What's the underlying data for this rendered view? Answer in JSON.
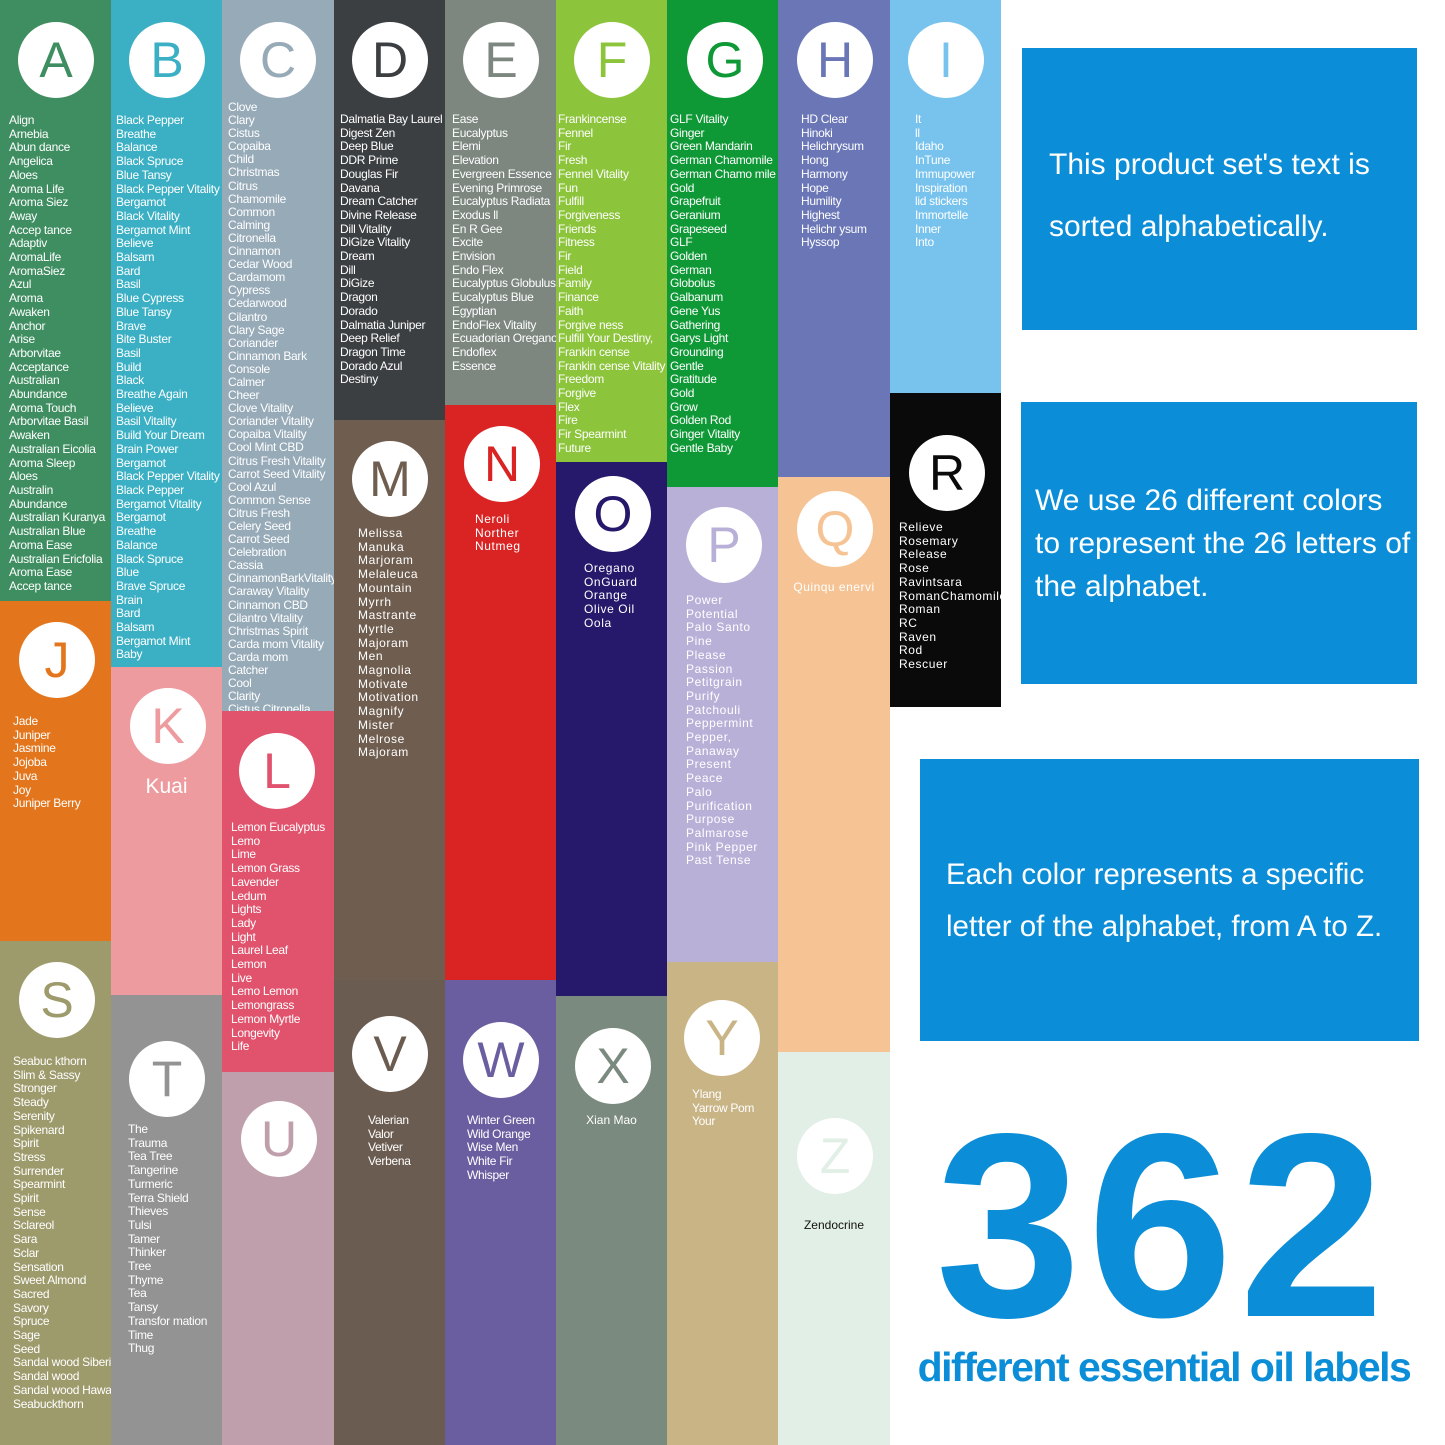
{
  "columns": {
    "a": {
      "letter": "A",
      "color": "#3f8e61",
      "items": [
        "Align",
        "Arnebia",
        "Abun dance",
        "Angelica",
        "Aloes",
        "Aroma Life",
        "Aroma Siez",
        "Away",
        "Accep tance",
        "Adaptiv",
        "AromaLife",
        "AromaSiez",
        "Azul",
        "Aroma",
        "Awaken",
        "Anchor",
        "Arise",
        "Arborvitae",
        "Acceptance",
        "Australian",
        "Abundance",
        "Aroma Touch",
        "Arborvitae Basil",
        "Awaken",
        "Australian Eicolia",
        "Aroma Sleep",
        "Aloes",
        "Australin",
        "Abundance",
        "Australian Kuranya",
        "Australian Blue",
        "Aroma Ease",
        "Australian Ericfolia",
        "Aroma Ease",
        "Accep  tance"
      ]
    },
    "b": {
      "letter": "B",
      "color": "#3bb0c4",
      "items": [
        "Black Pepper",
        "Breathe",
        "Balance",
        "Black Spruce",
        "Blue Tansy",
        "Black Pepper Vitality",
        "Bergamot",
        "Black Vitality",
        "Bergamot Mint",
        "Believe",
        "Balsam",
        "Bard",
        "Basil",
        "Blue Cypress",
        "Blue Tansy",
        "Brave",
        "Bite Buster",
        "Basil",
        "Build",
        "Black",
        "Breathe Again",
        "Believe",
        "Basil Vitality",
        "Build Your Dream",
        "Brain Power",
        "Bergamot",
        "Black Pepper Vitality",
        "Black Pepper",
        "Bergamot Vitality",
        "Bergamot",
        "Breathe",
        "Balance",
        "Black Spruce",
        "Blue",
        "Brave Spruce",
        "Brain",
        "Bard",
        "Balsam",
        "Bergamot Mint",
        "Baby"
      ]
    },
    "c": {
      "letter": "C",
      "color": "#97aab8",
      "items": [
        "Clove",
        "Clary",
        "Cistus",
        "Copaiba",
        "Child",
        "Christmas",
        "Citrus",
        "Chamomile",
        "Common",
        "Calming",
        "Citronella",
        "Cinnamon",
        "Cedar Wood",
        "Cardamom",
        "Cypress",
        "Cedarwood",
        "Cilantro",
        "Clary Sage",
        "Coriander",
        "Cinnamon Bark",
        "Console",
        "Calmer",
        "Cheer",
        "Clove Vitality",
        "Coriander Vitality",
        "Copaiba Vitality",
        "Cool Mint CBD",
        "Citrus Fresh Vitality",
        "Carrot Seed Vitality",
        "Cool Azul",
        "Common Sense",
        "Citrus Fresh",
        "Celery Seed",
        "Carrot Seed",
        "Celebration",
        "Cassia",
        "CinnamonBarkVitality",
        "Caraway Vitality",
        "Cinnamon CBD",
        "Cilantro Vitality",
        "Christmas Spirit",
        "Carda mom Vitality",
        "Carda mom",
        "Catcher",
        "Cool",
        "Clarity",
        "Cistus Citronella"
      ]
    },
    "d": {
      "letter": "D",
      "color": "#3c3f42",
      "items": [
        "Dalmatia Bay Laurel",
        "Digest Zen",
        "Deep Blue",
        "DDR Prime",
        "Douglas Fir",
        "Davana",
        "Dream Catcher",
        "Divine Release",
        "Dill Vitality",
        "DiGize Vitality",
        "Dream",
        "Dill",
        "DiGize",
        "Dragon",
        "Dorado",
        "Dalmatia Juniper",
        "Deep  Relief",
        "Dragon Time",
        "Dorado Azul",
        "Destiny"
      ]
    },
    "e": {
      "letter": "E",
      "color": "#7d8780",
      "items": [
        "Ease",
        "Eucalyptus",
        "Elemi",
        "Elevation",
        "Evergreen Essence",
        "Evening Primrose",
        "Eucalyptus Radiata",
        "Exodus ll",
        "En R Gee",
        "Excite",
        "Envision",
        "Endo Flex",
        "Eucalyptus Globulus",
        "Eucalyptus Blue",
        "Egyptian",
        "EndoFlex Vitality",
        "Ecuadorian Oregano",
        "Endoflex",
        "Essence"
      ]
    },
    "f": {
      "letter": "F",
      "color": "#8cc43c",
      "items": [
        "Frankincense",
        "Fennel",
        "Fir",
        "Fresh",
        "Fennel Vitality",
        "Fun",
        "Fulfill",
        "Forgiveness",
        "Friends",
        "Fitness",
        "Fir",
        "Field",
        "Family",
        "Finance",
        "Faith",
        "Forgive ness",
        "Fulfill Your Destiny,",
        "Frankin cense",
        "Frankin cense Vitality",
        "Freedom",
        "Forgive",
        "Flex",
        "Fire",
        "Fir Spearmint",
        "Future"
      ]
    },
    "g": {
      "letter": "G",
      "color": "#0f9936",
      "items": [
        "GLF Vitality",
        "Ginger",
        "Green Mandarin",
        "German Chamomile",
        "German Chamo mile",
        "Gold",
        "Grapefruit",
        "Geranium",
        "Grapeseed",
        "GLF",
        "Golden",
        "German",
        "Globolus",
        "Galbanum",
        "Gene Yus",
        "Gathering",
        "Garys Light",
        "Grounding",
        "Gentle",
        "Gratitude",
        "Gold",
        "Grow",
        "Golden Rod",
        "Ginger Vitality",
        "Gentle Baby"
      ]
    },
    "h": {
      "letter": "H",
      "color": "#6a76b6",
      "items": [
        "HD Clear",
        "Hinoki",
        "Helichrysum",
        "Hong",
        "Harmony",
        "Hope",
        "Humility",
        "Highest",
        "Helichr ysum",
        "Hyssop"
      ]
    },
    "i": {
      "letter": "I",
      "color": "#78c3ee",
      "items": [
        "It",
        "ll",
        "Idaho",
        "InTune",
        "Immupower",
        "Inspiration",
        "lid stickers",
        "Immortelle",
        "Inner",
        "Into"
      ]
    },
    "j": {
      "letter": "J",
      "color": "#e3761d",
      "items": [
        "Jade",
        "Juniper",
        "Jasmine",
        "Jojoba",
        "Juva",
        "Joy",
        "Juniper Berry"
      ]
    },
    "k": {
      "letter": "K",
      "color": "#ee9b9f",
      "items": [
        "Kuai"
      ]
    },
    "l": {
      "letter": "L",
      "color": "#e1536d",
      "items": [
        "Lemon Eucalyptus",
        "Lemo",
        "Lime",
        "Lemon Grass",
        "Lavender",
        "Ledum",
        "Lights",
        "Lady",
        "Light",
        "Laurel Leaf",
        "Lemon",
        "Live",
        "Lemo Lemon",
        "Lemongrass",
        "Lemon Myrtle",
        "Longevity",
        "Life"
      ]
    },
    "m": {
      "letter": "M",
      "color": "#6f5e4f",
      "items": [
        "Melissa",
        "Manuka",
        "Marjoram",
        "Melaleuca",
        "Mountain",
        "Myrrh",
        "Mastrante",
        "Myrtle",
        "Majoram",
        "Men",
        "Magnolia",
        "Motivate",
        "Motivation",
        "Magnify",
        "Mister",
        "Melrose",
        "Majoram"
      ]
    },
    "n": {
      "letter": "N",
      "color": "#da2424",
      "items": [
        "Neroli",
        "Norther",
        "Nutmeg"
      ]
    },
    "o": {
      "letter": "O",
      "color": "#26186a",
      "items": [
        "Oregano",
        "OnGuard",
        "Orange",
        "Olive Oil",
        "Oola"
      ]
    },
    "p": {
      "letter": "P",
      "color": "#b9b0d8",
      "items": [
        "Power",
        "Potential",
        "Palo Santo",
        "Pine",
        "Please",
        "Passion",
        "Petitgrain",
        "Purify",
        "Patchouli",
        "Peppermint",
        "Pepper,",
        "Panaway",
        "Present",
        "Peace",
        "Palo",
        "Purification",
        "Purpose",
        "Palmarose",
        "Pink Pepper",
        "Past Tense"
      ]
    },
    "q": {
      "letter": "Q",
      "color": "#f6c494",
      "items": [
        "Quinqu enervi"
      ]
    },
    "r": {
      "letter": "R",
      "color": "#0a0a0b",
      "items": [
        "Relieve",
        "Rosemary",
        "Release",
        "Rose",
        "Ravintsara",
        "RomanChamomile",
        "Roman",
        "RC",
        "Raven",
        "Rod",
        "Rescuer"
      ]
    },
    "s": {
      "letter": "S",
      "color": "#9d9a6c",
      "items": [
        "Seabuc kthorn",
        "Slim & Sassy",
        "Stronger",
        "Steady",
        "Serenity",
        "Spikenard",
        "Spirit",
        "Stress",
        "Surrender",
        "Spearmint",
        "Spirit",
        "Sense",
        "Sclareol",
        "Sara",
        "Sclar",
        "Sensation",
        "Sweet Almond",
        "Sacred",
        "Savory",
        "Spruce",
        "Sage",
        "Seed",
        "Sandal wood Siberian",
        "Sandal wood",
        "Sandal wood Hawaiian",
        "Seabuckthorn"
      ]
    },
    "t": {
      "letter": "T",
      "color": "#939393",
      "items": [
        "The",
        "Trauma",
        "Tea Tree",
        "Tangerine",
        "Turmeric",
        "Terra Shield",
        "Thieves",
        "Tulsi",
        "Tamer",
        "Thinker",
        "Tree",
        "Thyme",
        "Tea",
        "Tansy",
        "Transfor mation",
        "Time",
        "Thug"
      ]
    },
    "u": {
      "letter": "U",
      "color": "#c09fac",
      "items": []
    },
    "v": {
      "letter": "V",
      "color": "#6b5c51",
      "items": [
        "Valerian",
        "Valor",
        "Vetiver",
        "Verbena"
      ]
    },
    "w": {
      "letter": "W",
      "color": "#6b5ea0",
      "items": [
        "Winter Green",
        "Wild Orange",
        "Wise Men",
        "White Fir",
        "Whisper"
      ]
    },
    "x": {
      "letter": "X",
      "color": "#7b8a7e",
      "items": [
        "Xian Mao"
      ]
    },
    "y": {
      "letter": "Y",
      "color": "#c9b486",
      "items": [
        "Ylang",
        "Yarrow Pom",
        "Your"
      ]
    },
    "z": {
      "letter": "Z",
      "color": "#e2efe6",
      "items": [
        "Zendocrine"
      ]
    }
  },
  "info": {
    "box1": "This product set's text is sorted alphabetically.",
    "box2": "We use 26 different colors to represent the 26 letters of the alphabet.",
    "box3": "Each color represents a specific letter of the alphabet, from A to Z.",
    "count": "362",
    "count_label": "different essential oil labels",
    "accent_color": "#0b8ed7"
  }
}
